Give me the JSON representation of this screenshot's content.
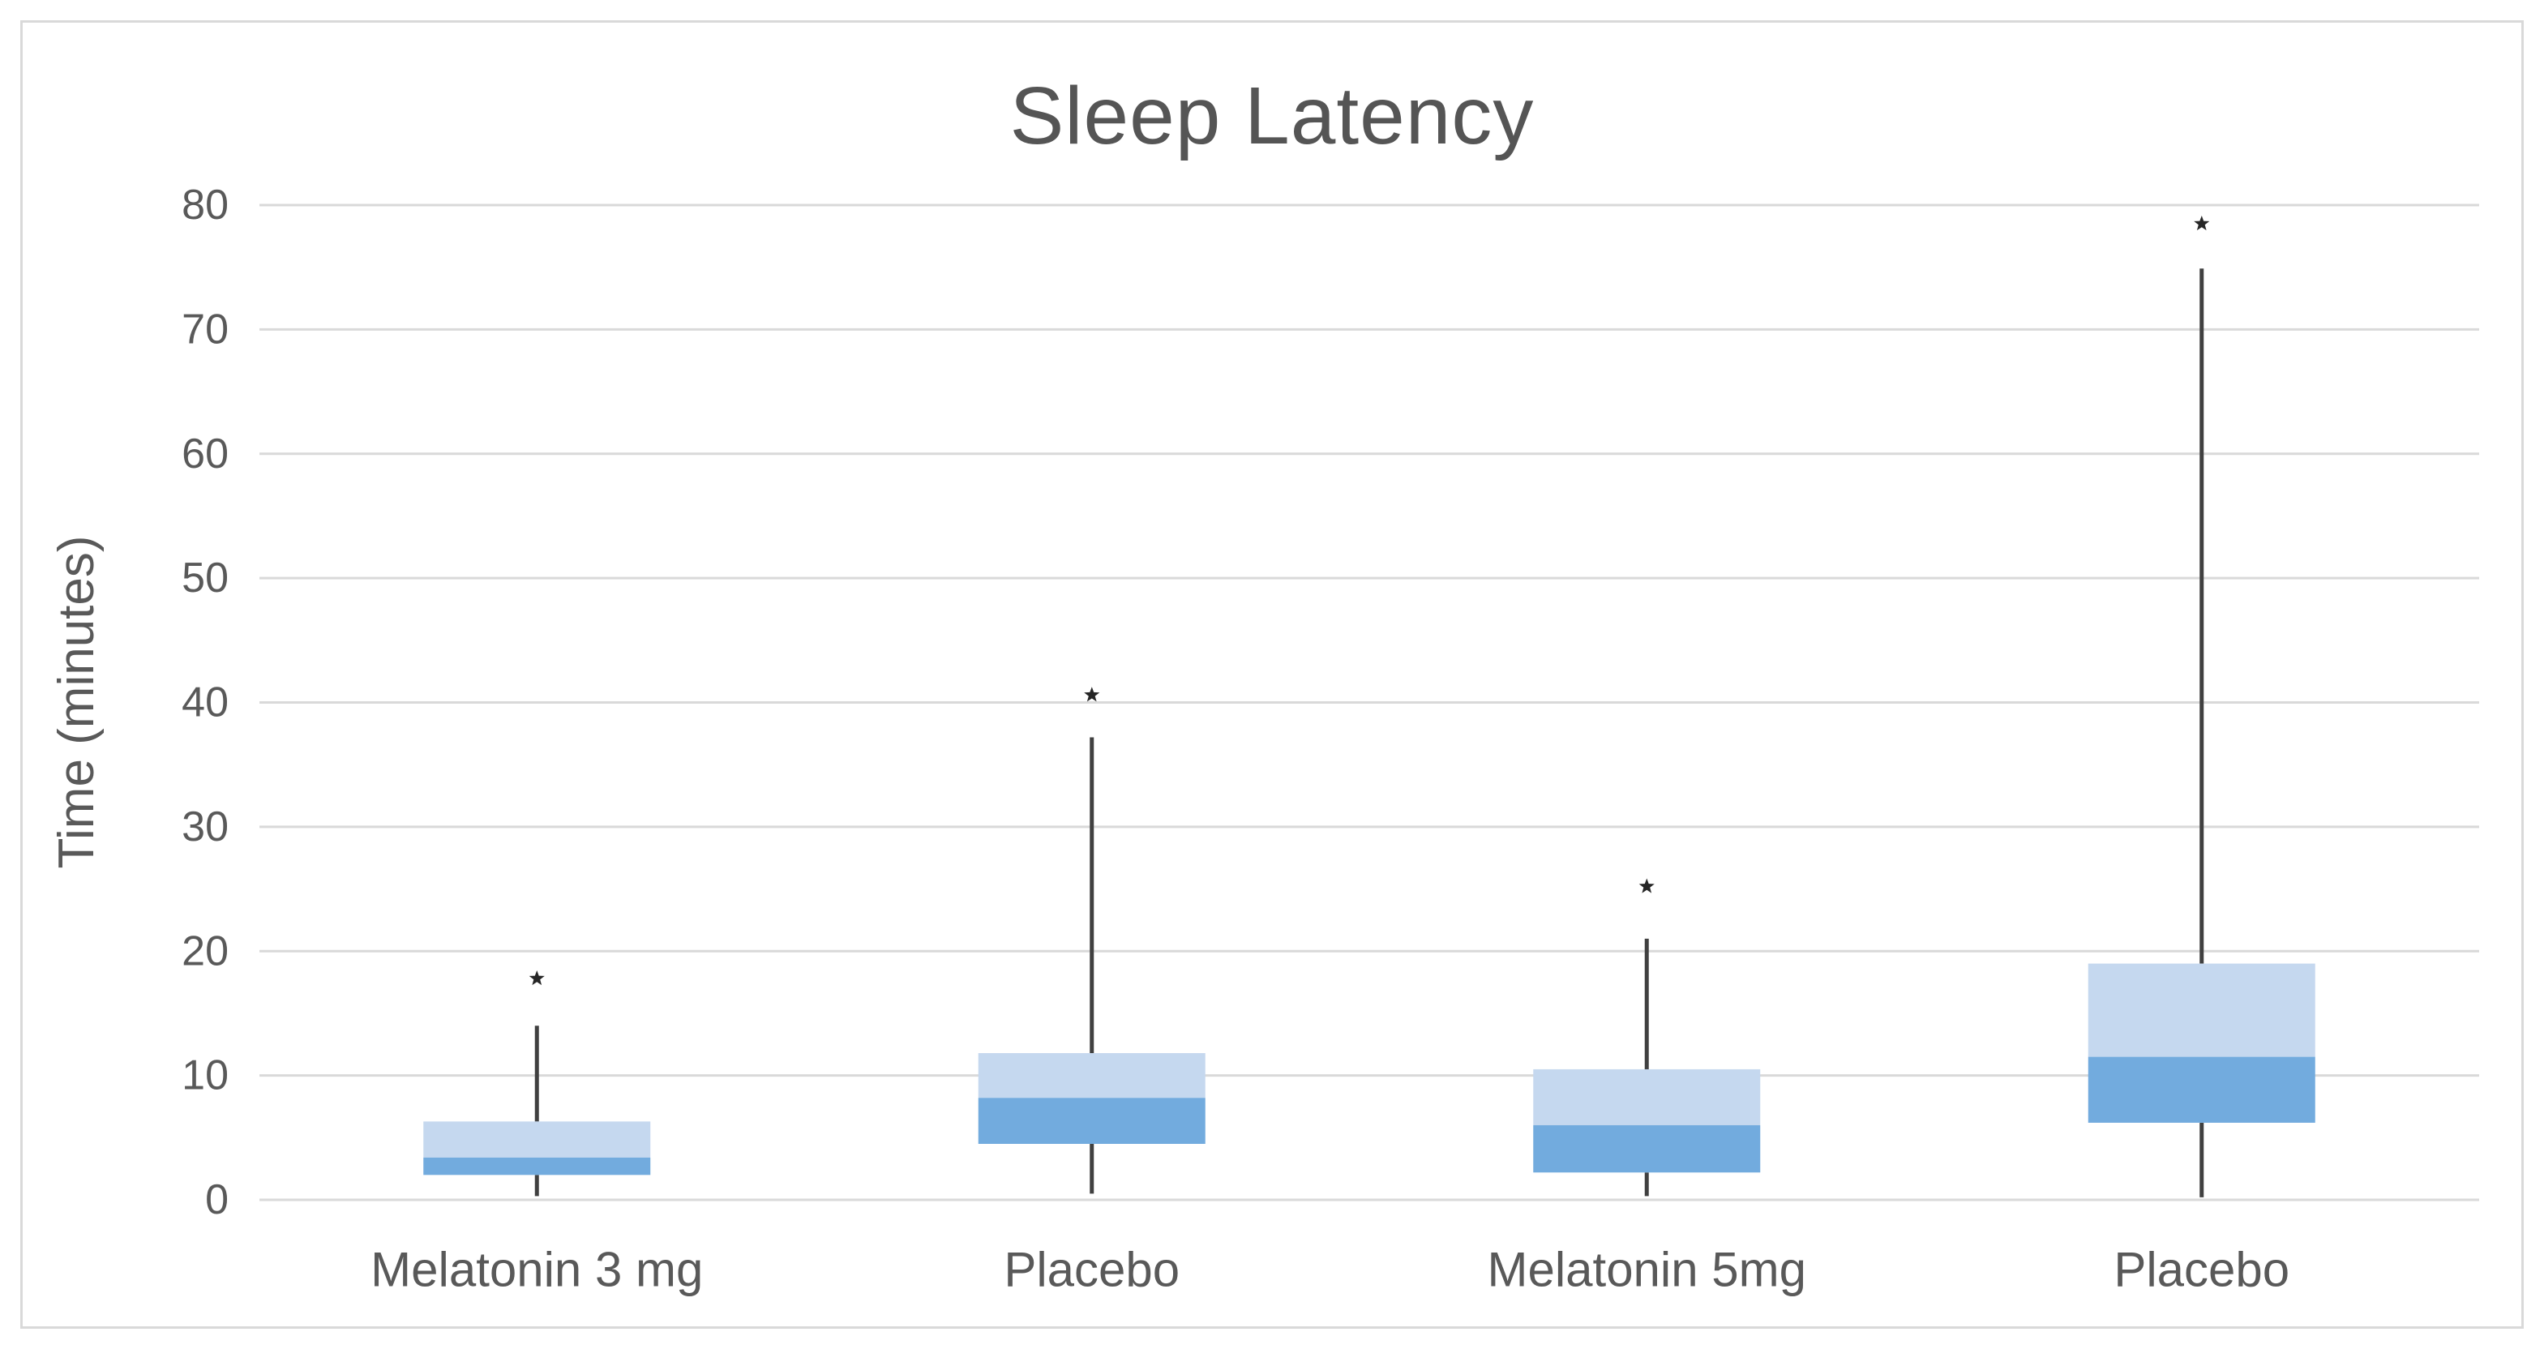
{
  "title": "Sleep Latency",
  "chart_data": {
    "type": "boxplot",
    "title": "Sleep Latency",
    "xlabel": "",
    "ylabel": "Time (minutes)",
    "ylim": [
      0,
      80
    ],
    "ytick_step": 10,
    "ytick_labels": [
      "0",
      "10",
      "20",
      "30",
      "40",
      "50",
      "60",
      "70",
      "80"
    ],
    "grid": true,
    "legend": "none",
    "categories": [
      "Melatonin 3 mg",
      "Placebo",
      "Melatonin 5mg",
      "Placebo"
    ],
    "series": [
      {
        "name": "Melatonin 3 mg",
        "whisker_low": 0.3,
        "q1": 2.0,
        "median": 3.4,
        "q3": 6.3,
        "whisker_high": 14.0,
        "outlier": 17.8
      },
      {
        "name": "Placebo",
        "whisker_low": 0.5,
        "q1": 4.5,
        "median": 8.2,
        "q3": 11.8,
        "whisker_high": 37.2,
        "outlier": 40.6
      },
      {
        "name": "Melatonin 5mg",
        "whisker_low": 0.3,
        "q1": 2.2,
        "median": 6.0,
        "q3": 10.5,
        "whisker_high": 21.0,
        "outlier": 25.2
      },
      {
        "name": "Placebo",
        "whisker_low": 0.2,
        "q1": 6.2,
        "median": 11.5,
        "q3": 19.0,
        "whisker_high": 74.9,
        "outlier": 78.5
      }
    ],
    "outlier_marker_shape": "star"
  },
  "colors": {
    "background": "#FFFFFF",
    "border": "#D9D9D9",
    "gridline": "#D9D9D9",
    "box_upper_fill": "#C5D8EF",
    "box_lower_fill": "#72ABDE",
    "whisker": "#404040",
    "outlier_marker": "#262626",
    "axis_text": "#595959",
    "title_text": "#555555"
  }
}
